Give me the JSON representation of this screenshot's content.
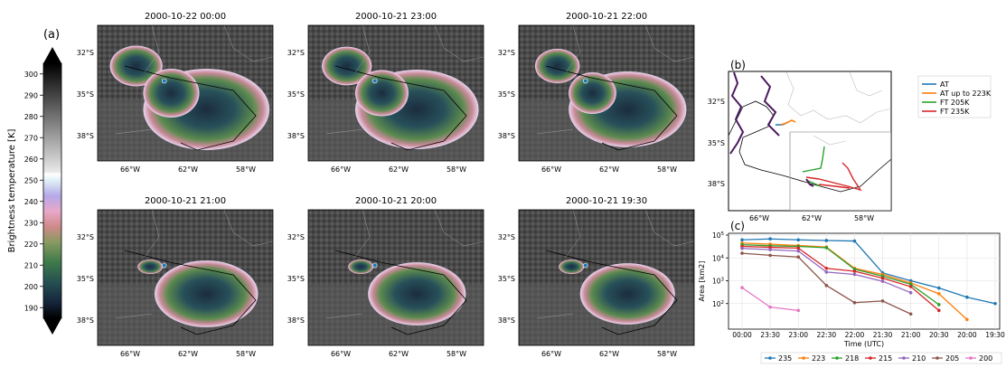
{
  "colorbar": {
    "panel_label": "(a)",
    "label": "Brightness temperature [K]",
    "ticks": [
      "190",
      "200",
      "210",
      "220",
      "230",
      "240",
      "250",
      "260",
      "270",
      "280",
      "290",
      "300"
    ],
    "range": [
      185,
      305
    ]
  },
  "maps": [
    {
      "title": "2000-10-22 00:00",
      "cloud": 1.0
    },
    {
      "title": "2000-10-21 23:00",
      "cloud": 0.95
    },
    {
      "title": "2000-10-21 22:00",
      "cloud": 0.85
    },
    {
      "title": "2000-10-21 21:00",
      "cloud": 0.6
    },
    {
      "title": "2000-10-21 20:00",
      "cloud": 0.5
    },
    {
      "title": "2000-10-21 19:30",
      "cloud": 0.45
    }
  ],
  "map_axes": {
    "lat_ticks": [
      "32°S",
      "35°S",
      "38°S"
    ],
    "lon_ticks": [
      "66°W",
      "62°W",
      "58°W"
    ]
  },
  "track_panel": {
    "label": "(b)",
    "lat_ticks": [
      "32°S",
      "35°S",
      "38°S"
    ],
    "lon_ticks": [
      "66°W",
      "62°W",
      "58°W"
    ],
    "legend": [
      {
        "name": "AT",
        "color": "#1f77b4"
      },
      {
        "name": "AT up to 223K",
        "color": "#ff7f0e"
      },
      {
        "name": "FT 205K",
        "color": "#2ca02c"
      },
      {
        "name": "FT 235K",
        "color": "#d62728"
      }
    ]
  },
  "chart_data": {
    "type": "line",
    "panel_label": "(c)",
    "xlabel": "Time (UTC)",
    "ylabel": "Area [km2]",
    "yscale": "log",
    "ylim": [
      10,
      100000
    ],
    "y_tick_labels": [
      "10^2",
      "10^3",
      "10^4",
      "10^5"
    ],
    "categories": [
      "00:00",
      "23:30",
      "23:00",
      "22:30",
      "22:00",
      "21:30",
      "21:00",
      "20:30",
      "20:00",
      "19:30"
    ],
    "legend_position": "below",
    "series": [
      {
        "name": "235",
        "color": "#1f77b4",
        "values": [
          62000,
          68000,
          62000,
          58000,
          55000,
          2200,
          1000,
          480,
          190,
          100
        ]
      },
      {
        "name": "223",
        "color": "#ff7f0e",
        "values": [
          45000,
          40000,
          35000,
          30000,
          3500,
          1900,
          800,
          270,
          20,
          null
        ]
      },
      {
        "name": "218",
        "color": "#2ca02c",
        "values": [
          38000,
          34000,
          32000,
          28000,
          3200,
          1600,
          700,
          90,
          null,
          null
        ]
      },
      {
        "name": "215",
        "color": "#d62728",
        "values": [
          32000,
          29000,
          27000,
          3500,
          2600,
          1300,
          550,
          50,
          null,
          null
        ]
      },
      {
        "name": "210",
        "color": "#9467bd",
        "values": [
          26000,
          23000,
          20000,
          2400,
          1900,
          950,
          300,
          null,
          null,
          null
        ]
      },
      {
        "name": "205",
        "color": "#8c564b",
        "values": [
          16000,
          13000,
          11000,
          620,
          110,
          130,
          35,
          null,
          null,
          null
        ]
      },
      {
        "name": "200",
        "color": "#e377c2",
        "values": [
          500,
          70,
          50,
          null,
          null,
          null,
          null,
          null,
          null,
          null
        ]
      }
    ]
  }
}
